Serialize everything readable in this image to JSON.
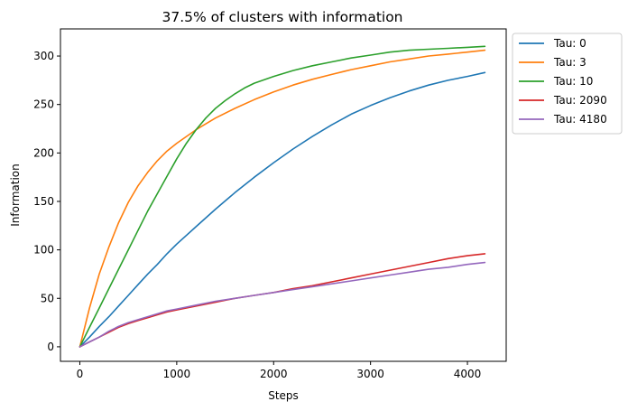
{
  "chart_data": {
    "type": "line",
    "title": "37.5% of clusters with information",
    "xlabel": "Steps",
    "ylabel": "Information",
    "xlim": [
      -200,
      4400
    ],
    "ylim": [
      -15,
      328
    ],
    "xticks": [
      0,
      1000,
      2000,
      3000,
      4000
    ],
    "yticks": [
      0,
      50,
      100,
      150,
      200,
      250,
      300
    ],
    "grid": false,
    "legend_position": "outside-top-right",
    "series": [
      {
        "name": "Tau: 0",
        "color": "#1f77b4",
        "x": [
          0,
          100,
          200,
          300,
          400,
          500,
          600,
          700,
          800,
          900,
          1000,
          1200,
          1400,
          1600,
          1800,
          2000,
          2200,
          2400,
          2600,
          2800,
          3000,
          3200,
          3400,
          3600,
          3800,
          4000,
          4180
        ],
        "y": [
          0,
          10,
          21,
          31,
          42,
          53,
          64,
          75,
          85,
          96,
          106,
          124,
          142,
          159,
          175,
          190,
          204,
          217,
          229,
          240,
          249,
          257,
          264,
          270,
          275,
          279,
          283
        ]
      },
      {
        "name": "Tau: 3",
        "color": "#ff7f0e",
        "x": [
          0,
          100,
          200,
          300,
          400,
          500,
          600,
          700,
          800,
          900,
          1000,
          1100,
          1200,
          1400,
          1600,
          1800,
          2000,
          2200,
          2400,
          2600,
          2800,
          3000,
          3200,
          3400,
          3600,
          3800,
          4000,
          4180
        ],
        "y": [
          0,
          40,
          75,
          103,
          128,
          149,
          166,
          180,
          192,
          202,
          210,
          217,
          224,
          236,
          246,
          255,
          263,
          270,
          276,
          281,
          286,
          290,
          294,
          297,
          300,
          302,
          304,
          306
        ]
      },
      {
        "name": "Tau: 10",
        "color": "#2ca02c",
        "x": [
          0,
          100,
          200,
          300,
          400,
          500,
          600,
          700,
          800,
          900,
          1000,
          1100,
          1200,
          1300,
          1400,
          1500,
          1600,
          1700,
          1800,
          2000,
          2200,
          2400,
          2600,
          2800,
          3000,
          3200,
          3400,
          3600,
          3800,
          4000,
          4180
        ],
        "y": [
          0,
          20,
          40,
          60,
          80,
          100,
          120,
          140,
          158,
          176,
          194,
          210,
          224,
          236,
          246,
          254,
          261,
          267,
          272,
          279,
          285,
          290,
          294,
          298,
          301,
          304,
          306,
          307,
          308,
          309,
          310
        ]
      },
      {
        "name": "Tau: 2090",
        "color": "#d62728",
        "x": [
          0,
          100,
          200,
          300,
          400,
          500,
          600,
          700,
          800,
          900,
          1000,
          1200,
          1400,
          1600,
          1800,
          2000,
          2200,
          2400,
          2600,
          2800,
          3000,
          3200,
          3400,
          3600,
          3800,
          4000,
          4180
        ],
        "y": [
          0,
          5,
          10,
          15,
          20,
          24,
          27,
          30,
          33,
          36,
          38,
          42,
          46,
          50,
          53,
          56,
          60,
          63,
          67,
          71,
          75,
          79,
          83,
          87,
          91,
          94,
          96
        ]
      },
      {
        "name": "Tau: 4180",
        "color": "#9467bd",
        "x": [
          0,
          100,
          200,
          300,
          400,
          500,
          600,
          700,
          800,
          900,
          1000,
          1200,
          1400,
          1600,
          1800,
          2000,
          2200,
          2400,
          2600,
          2800,
          3000,
          3200,
          3400,
          3600,
          3800,
          4000,
          4180
        ],
        "y": [
          0,
          5,
          10,
          16,
          21,
          25,
          28,
          31,
          34,
          37,
          39,
          43,
          47,
          50,
          53,
          56,
          59,
          62,
          65,
          68,
          71,
          74,
          77,
          80,
          82,
          85,
          87
        ]
      }
    ]
  }
}
